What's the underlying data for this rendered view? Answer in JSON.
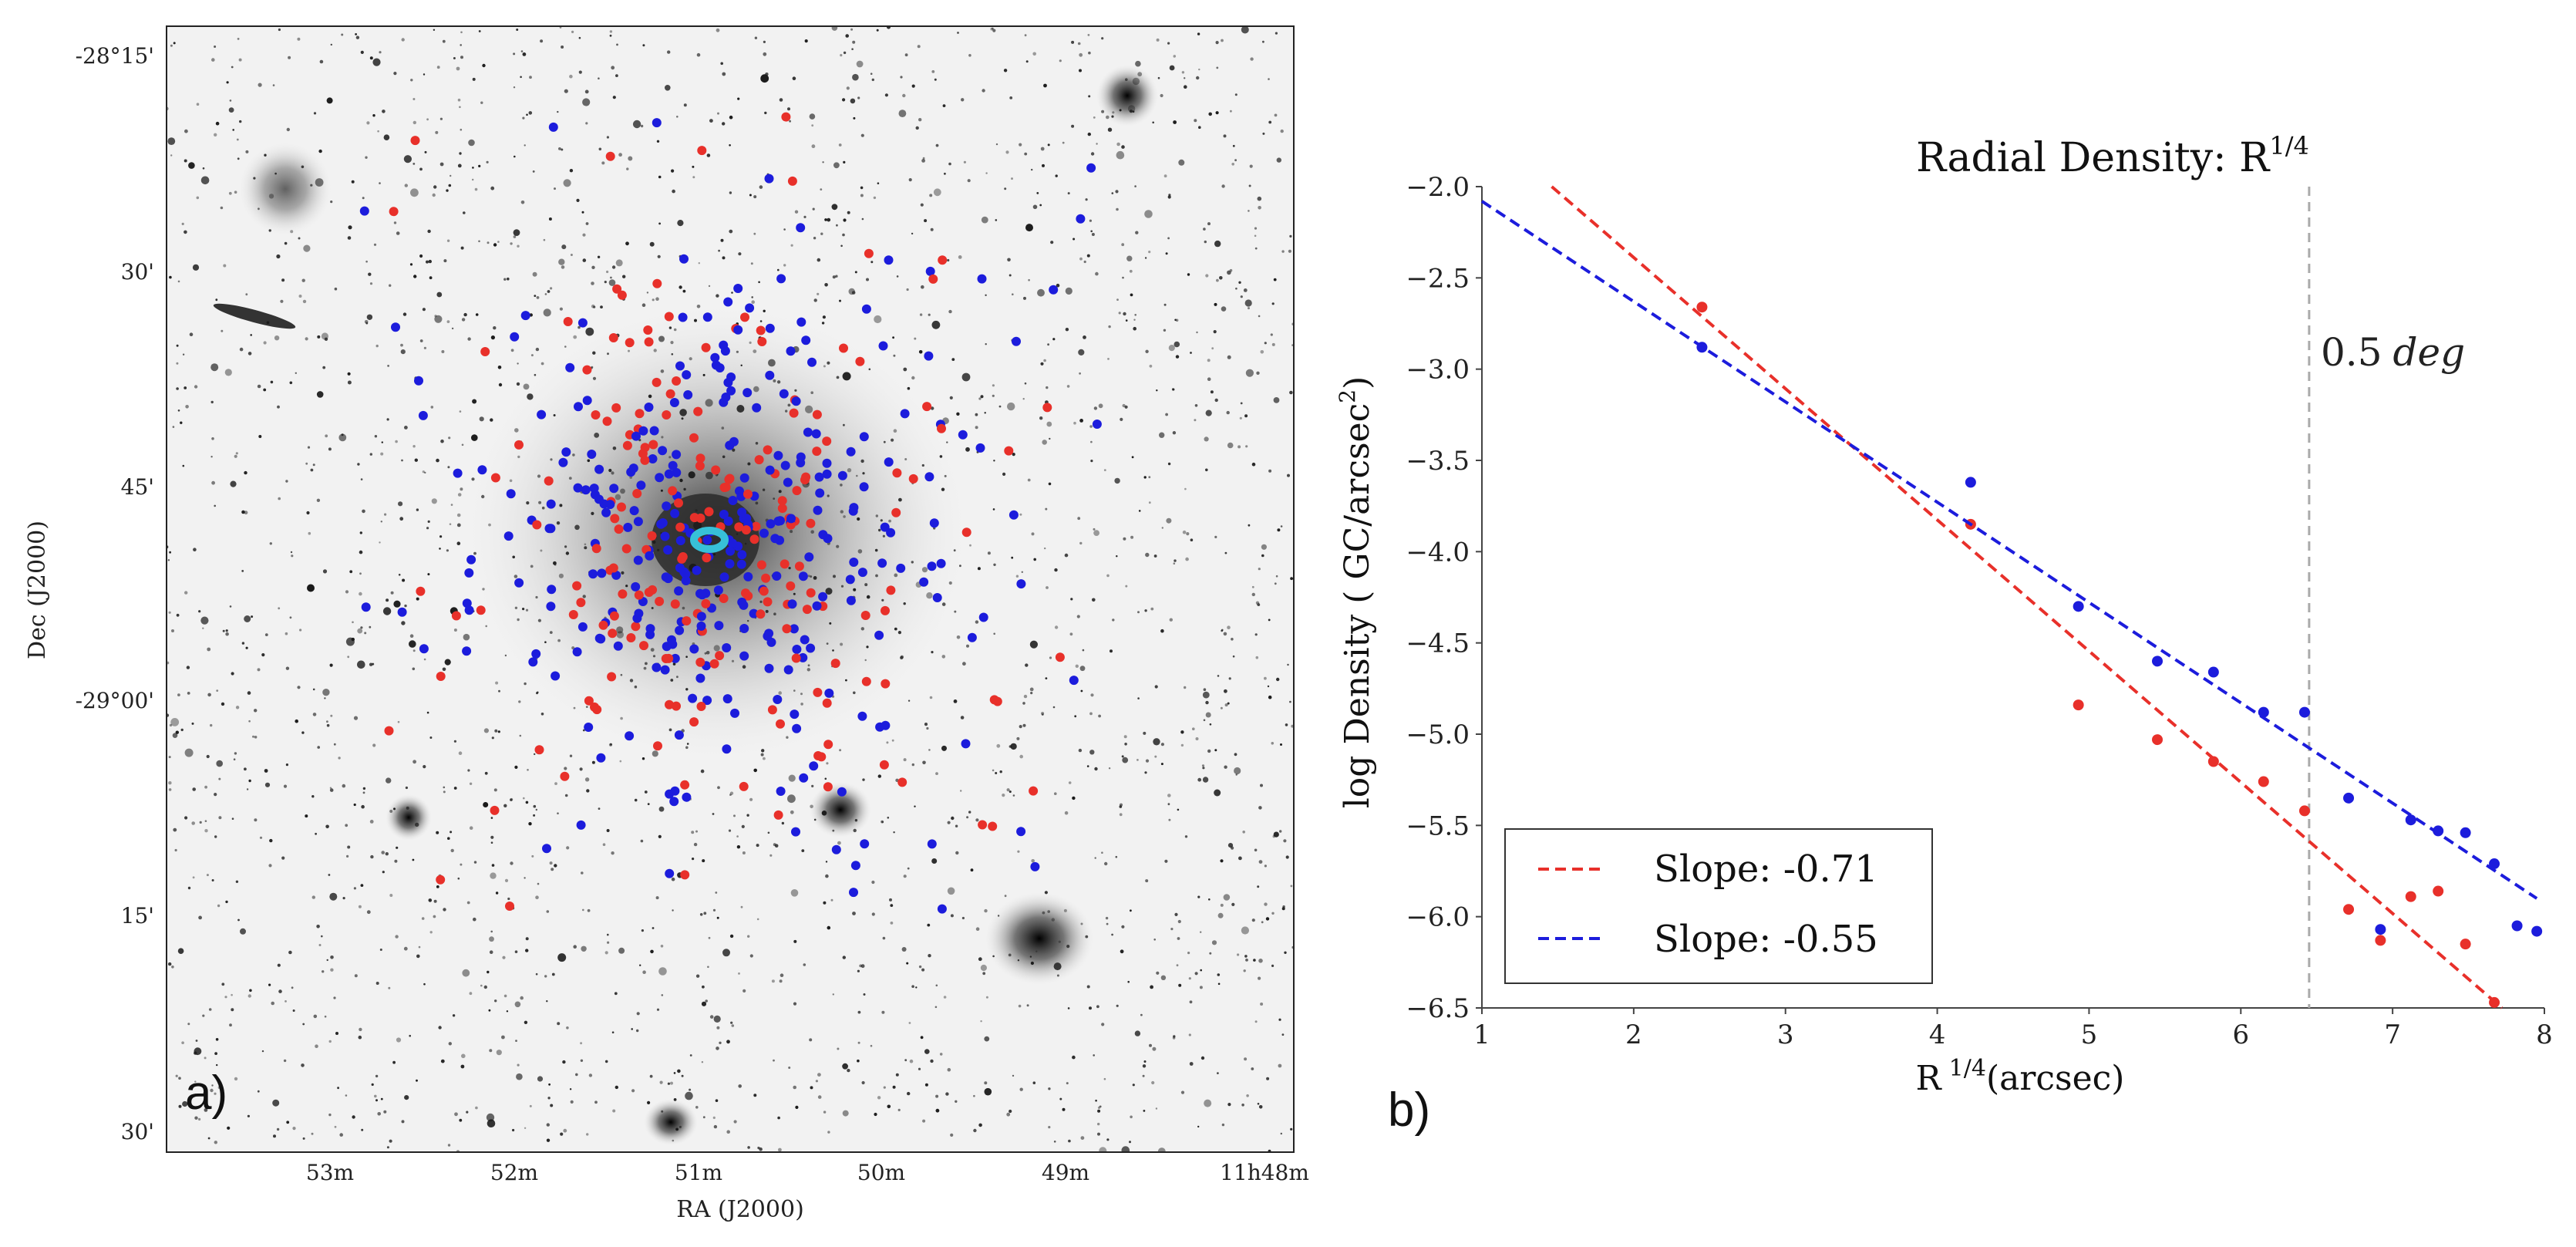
{
  "panel_a": {
    "label": "a)",
    "xlabel": "RA (J2000)",
    "ylabel": "Dec (J2000)",
    "ra_ticks": [
      "53m",
      "52m",
      "51m",
      "50m",
      "49m",
      "11h48m"
    ],
    "dec_ticks": [
      "-28°15'",
      "30'",
      "45'",
      "-29°00'",
      "15'",
      "30'"
    ],
    "colors": {
      "red_population": "#e8302a",
      "blue_population": "#1c1cdc",
      "center_marker": "#37c0d8"
    }
  },
  "panel_b": {
    "label": "b)",
    "vline_label": "0.5",
    "vline_label_unit": "deg"
  },
  "chart_data": {
    "type": "scatter",
    "title": "Radial Density: R",
    "title_superscript": "1/4",
    "xlabel": "R",
    "xlabel_superscript": "1/4",
    "xlabel_suffix": "(arcsec)",
    "ylabel": "log Density ( GC/arcsec",
    "ylabel_superscript": "2",
    "ylabel_suffix": ")",
    "xlim": [
      1,
      8
    ],
    "ylim": [
      -6.5,
      -2.0
    ],
    "xticks": [
      1,
      2,
      3,
      4,
      5,
      6,
      7,
      8
    ],
    "yticks": [
      -2.0,
      -2.5,
      -3.0,
      -3.5,
      -4.0,
      -4.5,
      -5.0,
      -5.5,
      -6.0,
      -6.5
    ],
    "vline_x": 6.45,
    "legend_position": "bottom-left",
    "series": [
      {
        "name": "Slope: -0.71",
        "color": "#e8302a",
        "points": [
          {
            "x": 2.45,
            "y": -2.66
          },
          {
            "x": 4.22,
            "y": -3.85
          },
          {
            "x": 4.93,
            "y": -4.84
          },
          {
            "x": 5.45,
            "y": -5.03
          },
          {
            "x": 5.82,
            "y": -5.15
          },
          {
            "x": 6.15,
            "y": -5.26
          },
          {
            "x": 6.42,
            "y": -5.42
          },
          {
            "x": 6.71,
            "y": -5.96
          },
          {
            "x": 6.92,
            "y": -6.13
          },
          {
            "x": 7.12,
            "y": -5.89
          },
          {
            "x": 7.3,
            "y": -5.86
          },
          {
            "x": 7.48,
            "y": -6.15
          },
          {
            "x": 7.67,
            "y": -6.47
          }
        ],
        "fit": {
          "slope": -0.71,
          "x_start": 1.46,
          "y_start": -2.0,
          "x_end": 7.72,
          "y_end": -6.5
        }
      },
      {
        "name": "Slope: -0.55",
        "color": "#1c1cdc",
        "points": [
          {
            "x": 2.45,
            "y": -2.88
          },
          {
            "x": 4.22,
            "y": -3.62
          },
          {
            "x": 4.93,
            "y": -4.3
          },
          {
            "x": 5.45,
            "y": -4.6
          },
          {
            "x": 5.82,
            "y": -4.66
          },
          {
            "x": 6.15,
            "y": -4.88
          },
          {
            "x": 6.42,
            "y": -4.88
          },
          {
            "x": 6.71,
            "y": -5.35
          },
          {
            "x": 6.92,
            "y": -6.07
          },
          {
            "x": 7.12,
            "y": -5.47
          },
          {
            "x": 7.3,
            "y": -5.53
          },
          {
            "x": 7.48,
            "y": -5.54
          },
          {
            "x": 7.67,
            "y": -5.71
          },
          {
            "x": 7.82,
            "y": -6.05
          },
          {
            "x": 7.95,
            "y": -6.08
          }
        ],
        "fit": {
          "slope": -0.55,
          "x_start": 1.0,
          "y_start": -2.08,
          "x_end": 7.95,
          "y_end": -5.9
        }
      }
    ]
  }
}
